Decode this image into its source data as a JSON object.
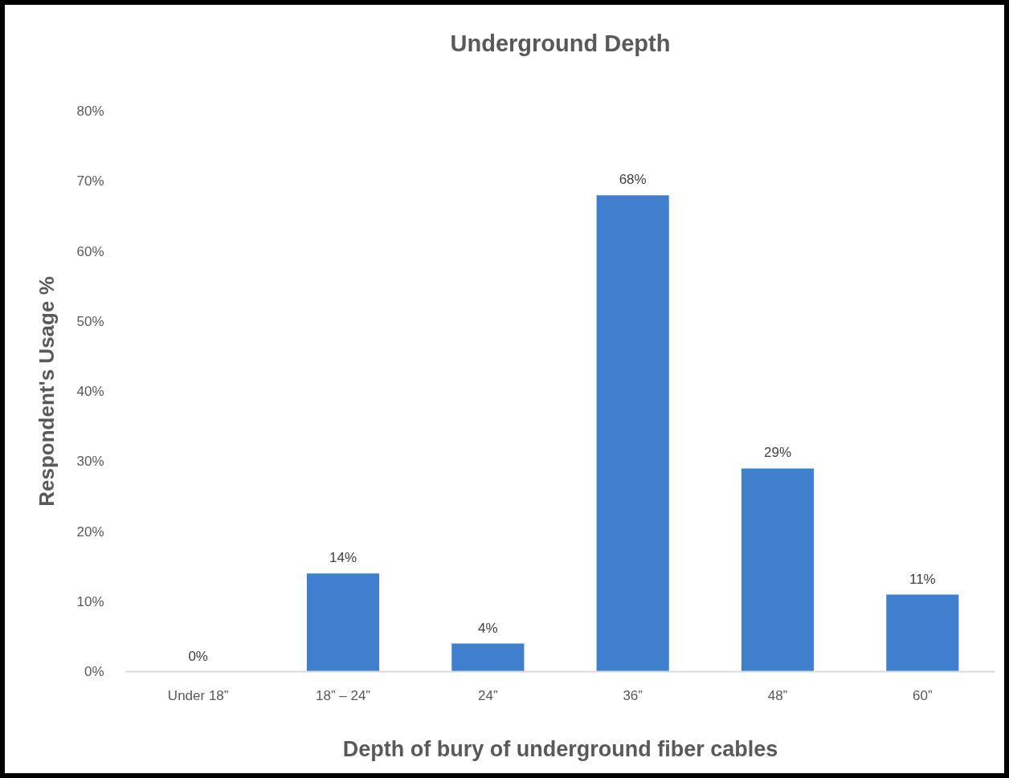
{
  "chart_data": {
    "type": "bar",
    "title": "Underground Depth",
    "xlabel": "Depth of bury of underground fiber cables",
    "ylabel": "Respondent's Usage %",
    "categories": [
      "Under 18”",
      "18” – 24”",
      "24”",
      "36”",
      "48”",
      "60”"
    ],
    "values": [
      0,
      14,
      4,
      68,
      29,
      11
    ],
    "value_labels": [
      "0%",
      "14%",
      "4%",
      "68%",
      "29%",
      "11%"
    ],
    "color": "#3f7fcc",
    "ylim": [
      0,
      80
    ],
    "yticks": [
      {
        "value": 0,
        "label": "0%"
      },
      {
        "value": 10,
        "label": "10%"
      },
      {
        "value": 20,
        "label": "20%"
      },
      {
        "value": 30,
        "label": "30%"
      },
      {
        "value": 40,
        "label": "40%"
      },
      {
        "value": 50,
        "label": "50%"
      },
      {
        "value": 60,
        "label": "60%"
      },
      {
        "value": 70,
        "label": "70%"
      },
      {
        "value": 80,
        "label": "80%"
      }
    ]
  }
}
